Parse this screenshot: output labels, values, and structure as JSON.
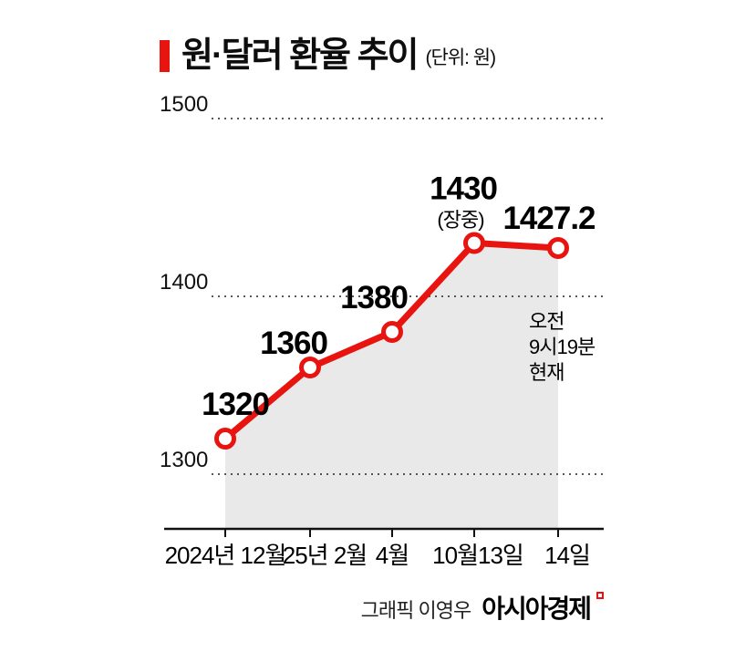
{
  "chart_data": {
    "type": "line",
    "title": "원·달러 환율 추이",
    "unit_label": "(단위: 원)",
    "categories": [
      "2024년 12월",
      "25년 2월",
      "4월",
      "10월13일",
      "14일"
    ],
    "values": [
      1320,
      1360,
      1380,
      1430,
      1427.2
    ],
    "point_labels": [
      "1320",
      "1360",
      "1380",
      "1430",
      "1427.2"
    ],
    "point_sublabels": [
      "",
      "",
      "",
      "(장중)",
      ""
    ],
    "yticks": [
      1500,
      1400,
      1300
    ],
    "ylim": [
      1270,
      1500
    ],
    "grid": "dotted-horizontal",
    "legend": "none",
    "annotation_lines": [
      "오전",
      "9시19분",
      "현재"
    ],
    "line_color": "#e8140f",
    "area_color": "#e9e9e9",
    "axis_color": "#111111",
    "grid_color": "#222222",
    "label_color": "#000000"
  },
  "footer": {
    "credit": "그래픽 이영우",
    "brand": "아시아경제"
  }
}
